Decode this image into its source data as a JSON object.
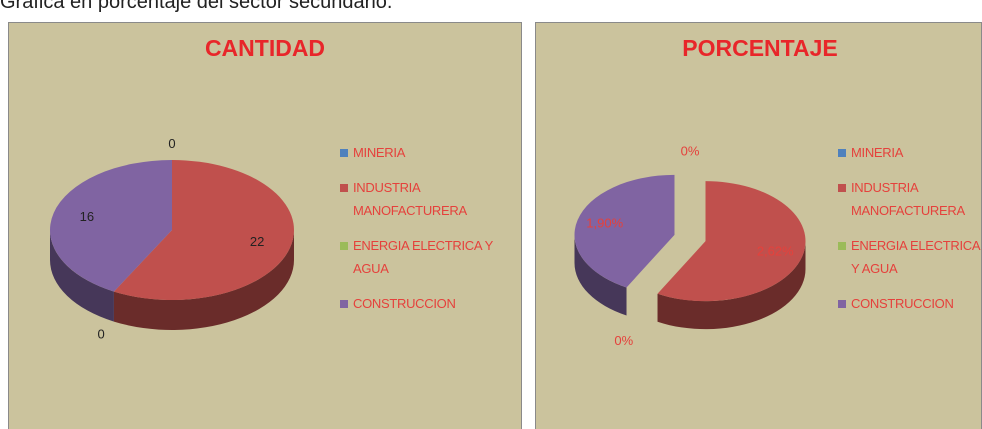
{
  "page_caption": "Gráfica en porcentaje del sector secundario.",
  "chart_data": [
    {
      "type": "pie",
      "title": "CANTIDAD",
      "categories": [
        "MINERIA",
        "INDUSTRIA MANOFACTURERA",
        "ENERGIA ELECTRICA Y AGUA",
        "CONSTRUCCION"
      ],
      "values": [
        0,
        22,
        0,
        16
      ],
      "colors": [
        "#4f81bd",
        "#c0504d",
        "#9bbb59",
        "#8064a2"
      ]
    },
    {
      "type": "pie",
      "title": "PORCENTAJE",
      "exploded": true,
      "categories": [
        "MINERIA",
        "INDUSTRIA MANOFACTURERA",
        "ENERGIA ELECTRICA Y AGUA",
        "CONSTRUCCION"
      ],
      "values": [
        0,
        2.62,
        0,
        1.9
      ],
      "value_labels": [
        "0%",
        "2,62%",
        "0%",
        "1,90%"
      ],
      "colors": [
        "#4f81bd",
        "#c0504d",
        "#9bbb59",
        "#8064a2"
      ]
    }
  ]
}
